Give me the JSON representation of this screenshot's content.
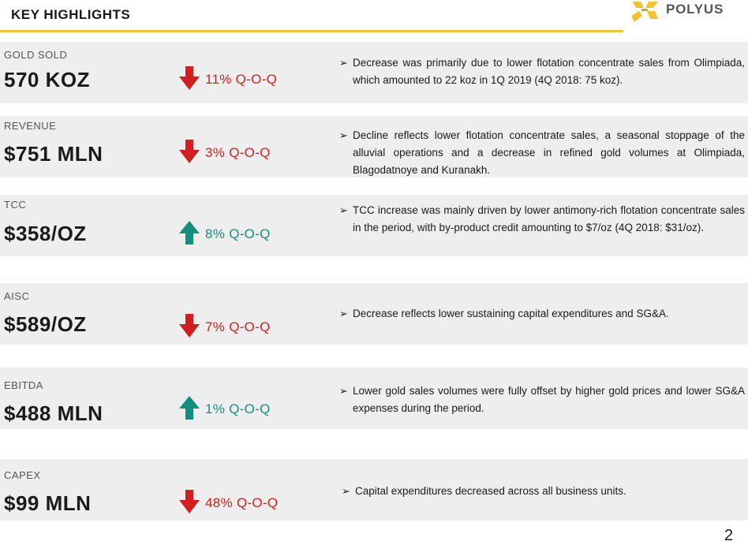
{
  "header": {
    "title": "KEY HIGHLIGHTS"
  },
  "brand": {
    "logo_text": "POLYUS",
    "accent_color": "#f2c230"
  },
  "colors": {
    "down": "#d01f1f",
    "up": "#138e7d",
    "row_bg": "#eeeeee"
  },
  "metrics": [
    {
      "label": "GOLD SOLD",
      "value": "570 KOZ",
      "direction": "down",
      "change": "11% Q-O-Q",
      "comment": "Decrease was primarily due to lower flotation concentrate sales from Olimpiada,  which amounted to 22 koz in 1Q 2019 (4Q 2018: 75 koz)."
    },
    {
      "label": "REVENUE",
      "value": "$751 MLN",
      "direction": "down",
      "change": "3% Q-O-Q",
      "comment": "Decline reflects lower flotation concentrate sales, a seasonal stoppage of the alluvial operations and a decrease in refined gold volumes at Olimpiada, Blagodatnoye and Kuranakh."
    },
    {
      "label": "TCC",
      "value": "$358/OZ",
      "direction": "up",
      "change": "8% Q-O-Q",
      "comment": "TCC increase was mainly driven by lower antimony-rich flotation concentrate sales in the period, with by-product credit amounting to $7/oz (4Q 2018: $31/oz)."
    },
    {
      "label": "AISC",
      "value": "$589/OZ",
      "direction": "down",
      "change": "7% Q-O-Q",
      "comment": "Decrease reflects lower sustaining capital expenditures and SG&A."
    },
    {
      "label": "EBITDA",
      "value": "$488 MLN",
      "direction": "up",
      "change": "1% Q-O-Q",
      "comment": "Lower gold sales volumes were fully offset by higher gold prices and lower SG&A expenses during the period."
    },
    {
      "label": "CAPEX",
      "value": "$99 MLN",
      "direction": "down",
      "change": "48% Q-O-Q",
      "comment": "Capital expenditures decreased across all business units."
    }
  ],
  "page_number": "2"
}
